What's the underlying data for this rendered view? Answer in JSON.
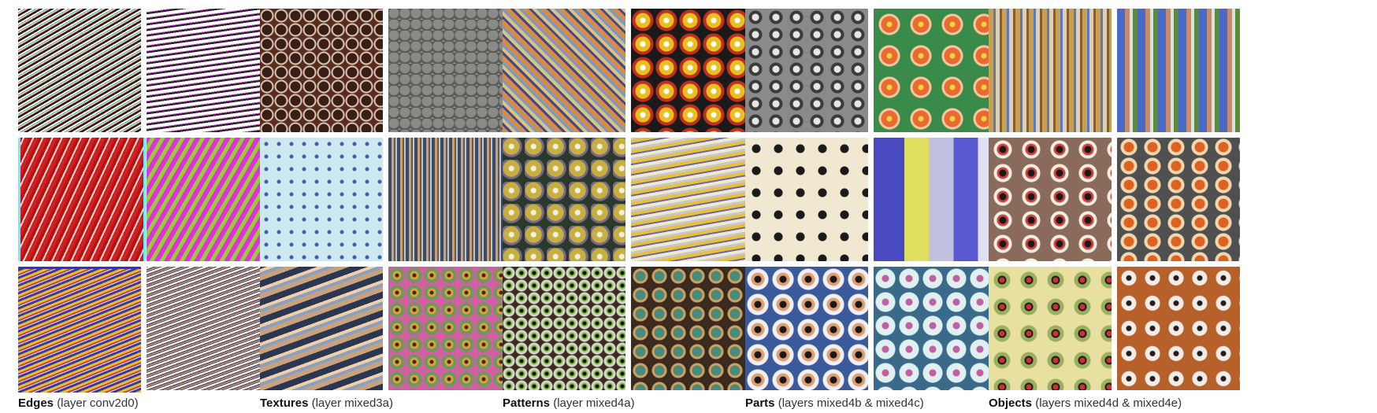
{
  "groups": [
    {
      "id": "edges",
      "title": "Edges",
      "subtitle": "(layer conv2d0)"
    },
    {
      "id": "textures",
      "title": "Textures",
      "subtitle": "(layer mixed3a)"
    },
    {
      "id": "patterns",
      "title": "Patterns",
      "subtitle": "(layer mixed4a)"
    },
    {
      "id": "parts",
      "title": "Parts",
      "subtitle": "(layers mixed4b & mixed4c)"
    },
    {
      "id": "objects",
      "title": "Objects",
      "subtitle": "(layers mixed4d & mixed4e)"
    }
  ]
}
